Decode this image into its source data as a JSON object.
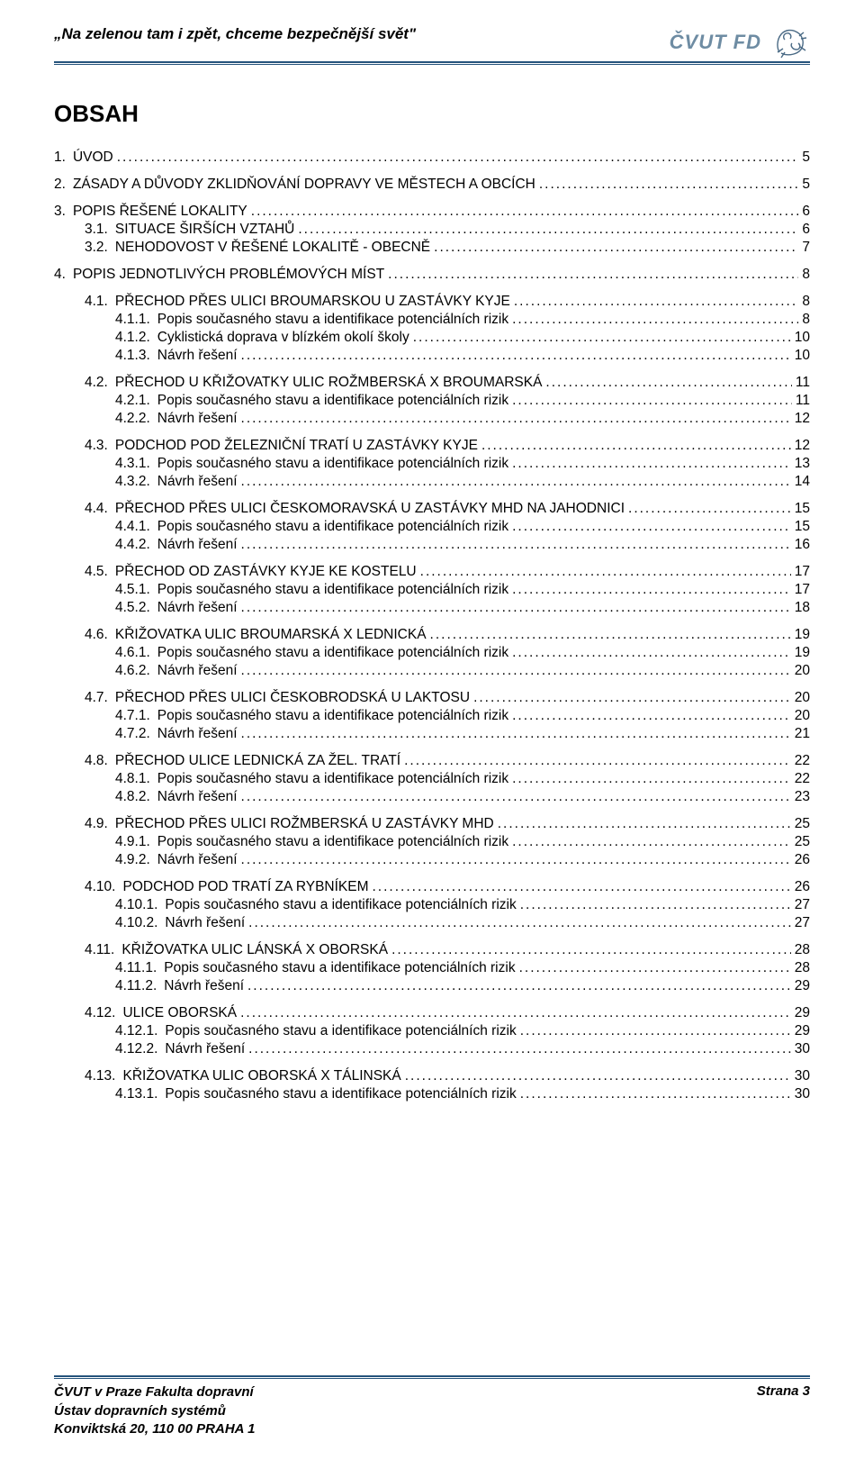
{
  "colors": {
    "accent": "#26547c",
    "brand_text": "#6e8ca3",
    "text": "#000000",
    "background": "#ffffff"
  },
  "typography": {
    "base_family": "Arial",
    "title_size_pt": 20,
    "body_size_pt": 12
  },
  "header": {
    "left_text": "„Na zelenou tam i zpět, chceme bezpečnější svět\"",
    "brand": "ČVUT FD"
  },
  "title": "OBSAH",
  "toc": [
    {
      "type": "group",
      "items": [
        {
          "level": 1,
          "num": "1.",
          "text": "ÚVOD",
          "page": "5"
        }
      ]
    },
    {
      "type": "group",
      "items": [
        {
          "level": 1,
          "num": "2.",
          "text": "ZÁSADY A DŮVODY ZKLIDŇOVÁNÍ DOPRAVY VE MĚSTECH A OBCÍCH",
          "page": "5"
        }
      ]
    },
    {
      "type": "group",
      "items": [
        {
          "level": 1,
          "num": "3.",
          "text": "POPIS ŘEŠENÉ LOKALITY",
          "page": "6"
        },
        {
          "level": 2,
          "num": "3.1.",
          "text": "SITUACE ŠIRŠÍCH VZTAHŮ",
          "page": "6"
        },
        {
          "level": 2,
          "num": "3.2.",
          "text": "NEHODOVOST V ŘEŠENÉ LOKALITĚ - OBECNĚ",
          "page": "7"
        }
      ]
    },
    {
      "type": "group",
      "items": [
        {
          "level": 1,
          "num": "4.",
          "text": "POPIS JEDNOTLIVÝCH PROBLÉMOVÝCH MÍST",
          "page": "8"
        }
      ]
    },
    {
      "type": "group",
      "items": [
        {
          "level": 2,
          "num": "4.1.",
          "text": "PŘECHOD PŘES ULICI BROUMARSKOU U ZASTÁVKY KYJE",
          "page": "8"
        },
        {
          "level": 3,
          "num": "4.1.1.",
          "text": "Popis současného stavu a identifikace potenciálních rizik",
          "page": "8"
        },
        {
          "level": 3,
          "num": "4.1.2.",
          "text": "Cyklistická doprava v blízkém okolí školy",
          "page": "10"
        },
        {
          "level": 3,
          "num": "4.1.3.",
          "text": "Návrh řešení",
          "page": "10"
        }
      ]
    },
    {
      "type": "group",
      "items": [
        {
          "level": 2,
          "num": "4.2.",
          "text": "PŘECHOD U KŘIŽOVATKY ULIC ROŽMBERSKÁ X BROUMARSKÁ",
          "page": "11"
        },
        {
          "level": 3,
          "num": "4.2.1.",
          "text": "Popis současného stavu a identifikace potenciálních rizik",
          "page": "11"
        },
        {
          "level": 3,
          "num": "4.2.2.",
          "text": "Návrh řešení",
          "page": "12"
        }
      ]
    },
    {
      "type": "group",
      "items": [
        {
          "level": 2,
          "num": "4.3.",
          "text": "PODCHOD POD ŽELEZNIČNÍ TRATÍ U ZASTÁVKY KYJE",
          "page": "12"
        },
        {
          "level": 3,
          "num": "4.3.1.",
          "text": "Popis současného stavu a identifikace potenciálních rizik",
          "page": "13"
        },
        {
          "level": 3,
          "num": "4.3.2.",
          "text": "Návrh řešení",
          "page": "14"
        }
      ]
    },
    {
      "type": "group",
      "items": [
        {
          "level": 2,
          "num": "4.4.",
          "text": "PŘECHOD PŘES ULICI ČESKOMORAVSKÁ U ZASTÁVKY MHD NA JAHODNICI",
          "page": "15"
        },
        {
          "level": 3,
          "num": "4.4.1.",
          "text": "Popis současného stavu a identifikace potenciálních rizik",
          "page": "15"
        },
        {
          "level": 3,
          "num": "4.4.2.",
          "text": "Návrh řešení",
          "page": "16"
        }
      ]
    },
    {
      "type": "group",
      "items": [
        {
          "level": 2,
          "num": "4.5.",
          "text": "PŘECHOD OD ZASTÁVKY KYJE KE KOSTELU",
          "page": "17"
        },
        {
          "level": 3,
          "num": "4.5.1.",
          "text": "Popis současného stavu a identifikace potenciálních rizik",
          "page": "17"
        },
        {
          "level": 3,
          "num": "4.5.2.",
          "text": "Návrh řešení",
          "page": "18"
        }
      ]
    },
    {
      "type": "group",
      "items": [
        {
          "level": 2,
          "num": "4.6.",
          "text": "KŘIŽOVATKA ULIC BROUMARSKÁ X LEDNICKÁ",
          "page": "19"
        },
        {
          "level": 3,
          "num": "4.6.1.",
          "text": "Popis současného stavu a identifikace potenciálních rizik",
          "page": "19"
        },
        {
          "level": 3,
          "num": "4.6.2.",
          "text": "Návrh řešení",
          "page": "20"
        }
      ]
    },
    {
      "type": "group",
      "items": [
        {
          "level": 2,
          "num": "4.7.",
          "text": "PŘECHOD PŘES ULICI ČESKOBRODSKÁ U LAKTOSU",
          "page": "20"
        },
        {
          "level": 3,
          "num": "4.7.1.",
          "text": "Popis současného stavu a identifikace potenciálních rizik",
          "page": "20"
        },
        {
          "level": 3,
          "num": "4.7.2.",
          "text": "Návrh řešení",
          "page": "21"
        }
      ]
    },
    {
      "type": "group",
      "items": [
        {
          "level": 2,
          "num": "4.8.",
          "text": "PŘECHOD ULICE LEDNICKÁ ZA ŽEL. TRATÍ",
          "page": "22"
        },
        {
          "level": 3,
          "num": "4.8.1.",
          "text": "Popis současného stavu a identifikace potenciálních rizik",
          "page": "22"
        },
        {
          "level": 3,
          "num": "4.8.2.",
          "text": "Návrh řešení",
          "page": "23"
        }
      ]
    },
    {
      "type": "group",
      "items": [
        {
          "level": 2,
          "num": "4.9.",
          "text": "PŘECHOD PŘES ULICI ROŽMBERSKÁ U ZASTÁVKY MHD",
          "page": "25"
        },
        {
          "level": 3,
          "num": "4.9.1.",
          "text": "Popis současného stavu a identifikace potenciálních rizik",
          "page": "25"
        },
        {
          "level": 3,
          "num": "4.9.2.",
          "text": "Návrh řešení",
          "page": "26"
        }
      ]
    },
    {
      "type": "group",
      "items": [
        {
          "level": 2,
          "num": "4.10.",
          "text": "PODCHOD POD TRATÍ ZA RYBNÍKEM",
          "page": "26"
        },
        {
          "level": 3,
          "num": "4.10.1.",
          "text": "Popis současného stavu a identifikace potenciálních rizik",
          "page": "27"
        },
        {
          "level": 3,
          "num": "4.10.2.",
          "text": "Návrh řešení",
          "page": "27"
        }
      ]
    },
    {
      "type": "group",
      "items": [
        {
          "level": 2,
          "num": "4.11.",
          "text": "KŘIŽOVATKA ULIC LÁNSKÁ X OBORSKÁ",
          "page": "28"
        },
        {
          "level": 3,
          "num": "4.11.1.",
          "text": "Popis současného stavu a identifikace potenciálních rizik",
          "page": "28"
        },
        {
          "level": 3,
          "num": "4.11.2.",
          "text": "Návrh řešení",
          "page": "29"
        }
      ]
    },
    {
      "type": "group",
      "items": [
        {
          "level": 2,
          "num": "4.12.",
          "text": "ULICE OBORSKÁ",
          "page": "29"
        },
        {
          "level": 3,
          "num": "4.12.1.",
          "text": "Popis současného stavu a identifikace potenciálních rizik",
          "page": "29"
        },
        {
          "level": 3,
          "num": "4.12.2.",
          "text": "Návrh řešení",
          "page": "30"
        }
      ]
    },
    {
      "type": "group",
      "items": [
        {
          "level": 2,
          "num": "4.13.",
          "text": "KŘIŽOVATKA ULIC OBORSKÁ X TÁLINSKÁ",
          "page": "30"
        },
        {
          "level": 3,
          "num": "4.13.1.",
          "text": "Popis současného stavu a identifikace potenciálních rizik",
          "page": "30"
        }
      ]
    }
  ],
  "footer": {
    "left_line1": "ČVUT v Praze Fakulta dopravní",
    "left_line2": "Ústav dopravních systémů",
    "left_line3": "Konviktská 20, 110 00  PRAHA 1",
    "right": "Strana 3"
  }
}
